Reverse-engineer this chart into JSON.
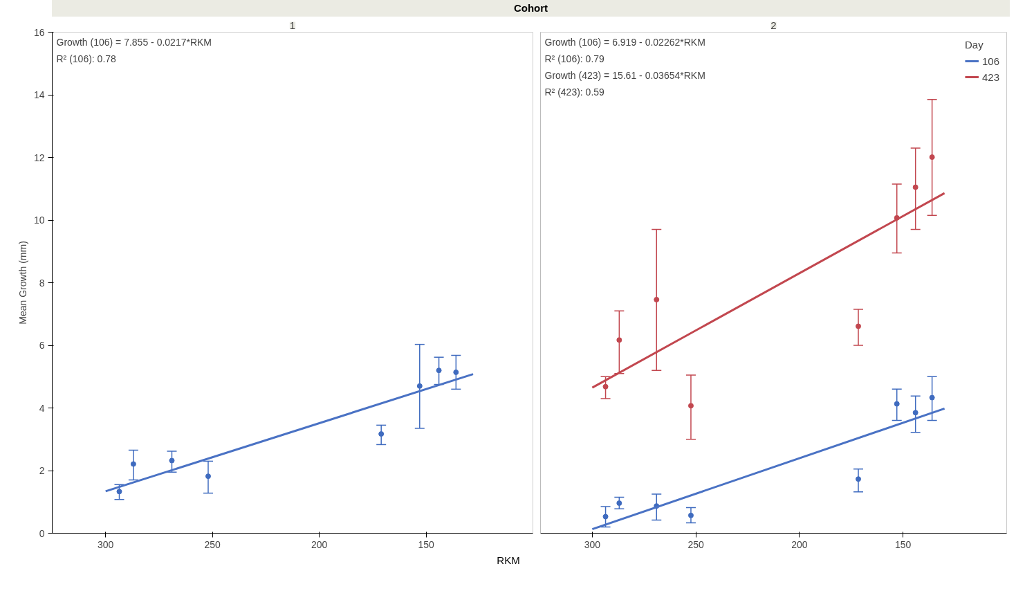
{
  "chart_data": [
    {
      "type": "scatter",
      "title": "Cohort",
      "subtitle": "1",
      "xlabel": "RKM",
      "ylabel": "Mean Growth (mm)",
      "xlim": [
        325,
        100
      ],
      "xticks": [
        300,
        250,
        200,
        150
      ],
      "ylim": [
        0,
        16
      ],
      "yticks": [
        0,
        2,
        4,
        6,
        8,
        10,
        12,
        14,
        16
      ],
      "grid": false,
      "legend": false,
      "marker": "circle",
      "annotations": [
        "Growth (106) = 7.855 - 0.0217*RKM",
        "R² (106): 0.78"
      ],
      "series": [
        {
          "color": "#3f6bbf",
          "x": [
            293.6,
            287,
            269,
            252,
            171,
            153,
            144,
            136
          ],
          "values": [
            1.33,
            2.21,
            2.32,
            1.82,
            3.17,
            4.7,
            5.2,
            5.14
          ],
          "errors": [
            [
              1.08,
              1.55
            ],
            [
              1.7,
              2.65
            ],
            [
              1.95,
              2.62
            ],
            [
              1.28,
              2.3
            ],
            [
              2.83,
              3.45
            ],
            [
              3.35,
              6.03
            ],
            [
              4.75,
              5.62
            ],
            [
              4.6,
              5.68
            ]
          ]
        },
        {
          "type": "line",
          "marker": "none",
          "color": "#4a72c4",
          "x": [
            300,
            128
          ],
          "values": [
            1.34,
            5.08
          ]
        }
      ]
    },
    {
      "type": "scatter",
      "subtitle": "2",
      "xlim": [
        325,
        100
      ],
      "xticks": [
        300,
        250,
        200,
        150
      ],
      "ylim": [
        0,
        16
      ],
      "yticks": [
        0,
        2,
        4,
        6,
        8,
        10,
        12,
        14,
        16
      ],
      "tick_labels": "x",
      "grid": false,
      "legend": "top right",
      "legend_title": "Day",
      "marker": "circle",
      "annotations": [
        "Growth (106) = 6.919 - 0.02262*RKM",
        "R² (106): 0.79",
        "Growth (423) = 15.61 - 0.03654*RKM",
        "R² (423): 0.59"
      ],
      "series": [
        {
          "color": "#3f6bbf",
          "x": [
            293.6,
            287,
            269,
            252.4,
            171.6,
            153,
            144,
            136
          ],
          "values": [
            0.53,
            0.96,
            0.87,
            0.57,
            1.73,
            4.13,
            3.85,
            4.33
          ],
          "errors": [
            [
              0.2,
              0.85
            ],
            [
              0.78,
              1.15
            ],
            [
              0.42,
              1.25
            ],
            [
              0.33,
              0.82
            ],
            [
              1.32,
              2.05
            ],
            [
              3.6,
              4.6
            ],
            [
              3.22,
              4.38
            ],
            [
              3.6,
              5.0
            ]
          ]
        },
        {
          "color": "#c2474f",
          "x": [
            293.6,
            287,
            269,
            252.4,
            171.6,
            153,
            144,
            136
          ],
          "values": [
            4.68,
            6.17,
            7.46,
            4.07,
            6.61,
            10.07,
            11.05,
            12.01
          ],
          "errors": [
            [
              4.3,
              5.0
            ],
            [
              5.1,
              7.1
            ],
            [
              5.2,
              9.7
            ],
            [
              3.0,
              5.05
            ],
            [
              6.0,
              7.15
            ],
            [
              8.95,
              11.15
            ],
            [
              9.7,
              12.3
            ],
            [
              10.15,
              13.85
            ]
          ]
        },
        {
          "type": "line",
          "marker": "none",
          "name": "106",
          "color": "#4a72c4",
          "x": [
            300,
            130
          ],
          "values": [
            0.13,
            3.98
          ]
        },
        {
          "type": "line",
          "marker": "none",
          "name": "423",
          "color": "#c2474f",
          "x": [
            300,
            130
          ],
          "values": [
            4.65,
            10.86
          ]
        }
      ]
    }
  ]
}
